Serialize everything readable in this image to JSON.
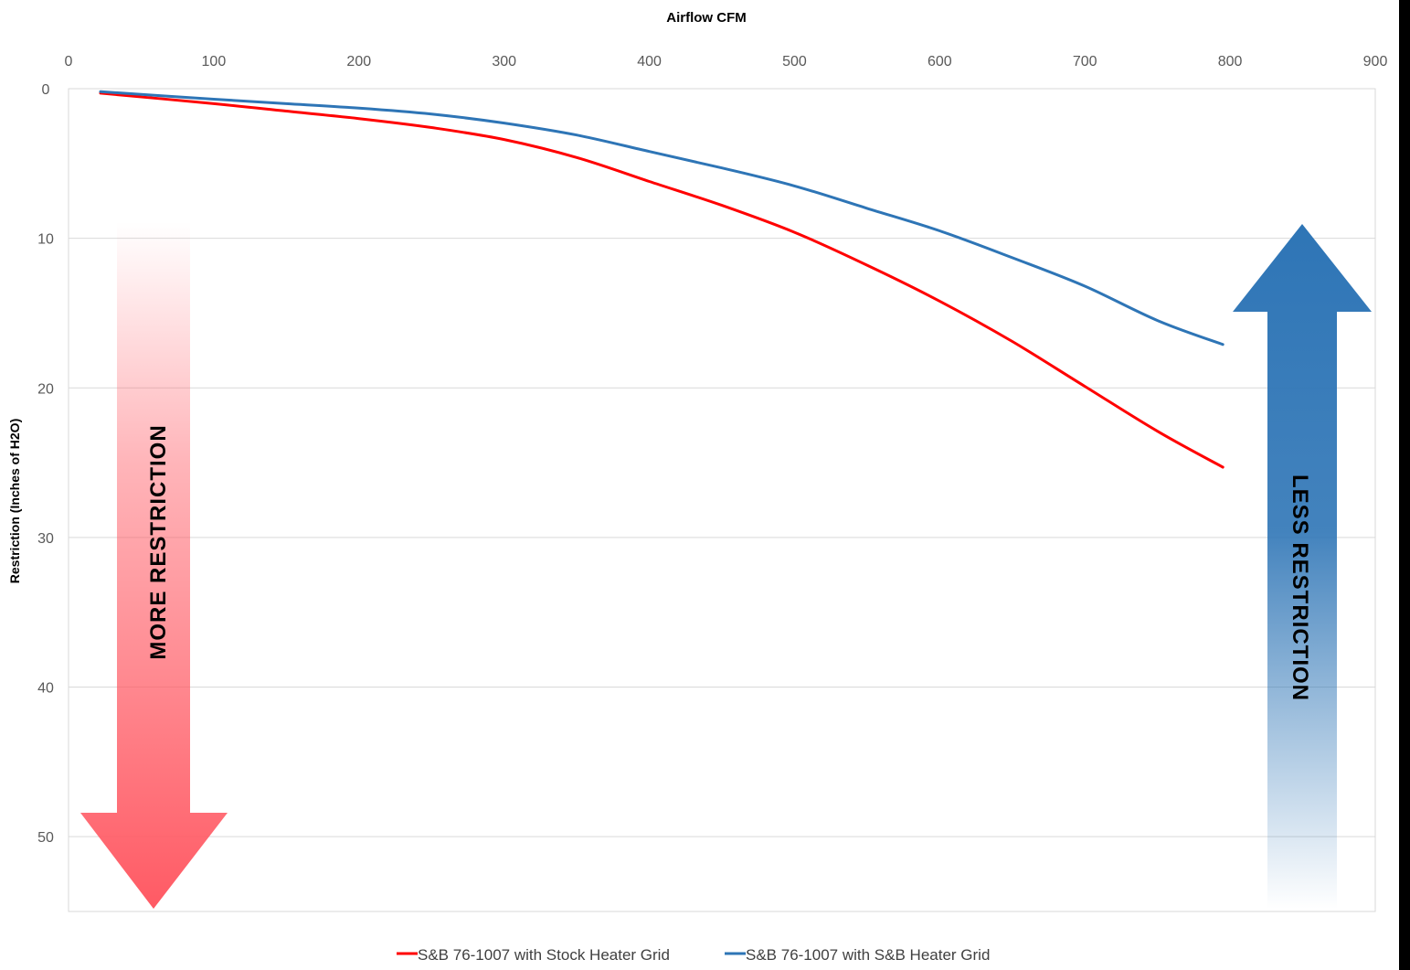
{
  "chart_data": {
    "type": "line",
    "xlabel": "Airflow CFM",
    "ylabel": "Restriction (Inches of H2O)",
    "xlim": [
      0,
      900
    ],
    "ylim": [
      0,
      55
    ],
    "y_inverted": true,
    "x_axis_position": "top",
    "grid": "horizontal",
    "legend_placement": "bottom",
    "x_ticks": [
      0,
      100,
      200,
      300,
      400,
      500,
      600,
      700,
      800,
      900
    ],
    "y_ticks": [
      0,
      10,
      20,
      30,
      40,
      50
    ],
    "series": [
      {
        "name": "S&B 76-1007 with Stock Heater Grid",
        "color": "#ff0000",
        "x": [
          22,
          100,
          150,
          200,
          250,
          300,
          350,
          400,
          450,
          500,
          550,
          600,
          650,
          700,
          750,
          795
        ],
        "y": [
          0.3,
          1.0,
          1.5,
          2.0,
          2.6,
          3.4,
          4.6,
          6.2,
          7.8,
          9.6,
          11.8,
          14.2,
          16.9,
          19.9,
          22.9,
          25.3
        ]
      },
      {
        "name": "S&B 76-1007 with S&B Heater Grid",
        "color": "#2e75b6",
        "x": [
          22,
          100,
          150,
          200,
          250,
          300,
          350,
          400,
          450,
          500,
          550,
          600,
          650,
          700,
          750,
          795
        ],
        "y": [
          0.2,
          0.7,
          1.0,
          1.3,
          1.7,
          2.3,
          3.1,
          4.2,
          5.3,
          6.5,
          8.0,
          9.5,
          11.3,
          13.2,
          15.5,
          17.1
        ]
      }
    ],
    "annotations": [
      {
        "text": "MORE RESTRICTION",
        "direction": "down",
        "color": "#ff5a64"
      },
      {
        "text": "LESS RESTRICTION",
        "direction": "up",
        "color": "#2e75b6"
      }
    ]
  }
}
